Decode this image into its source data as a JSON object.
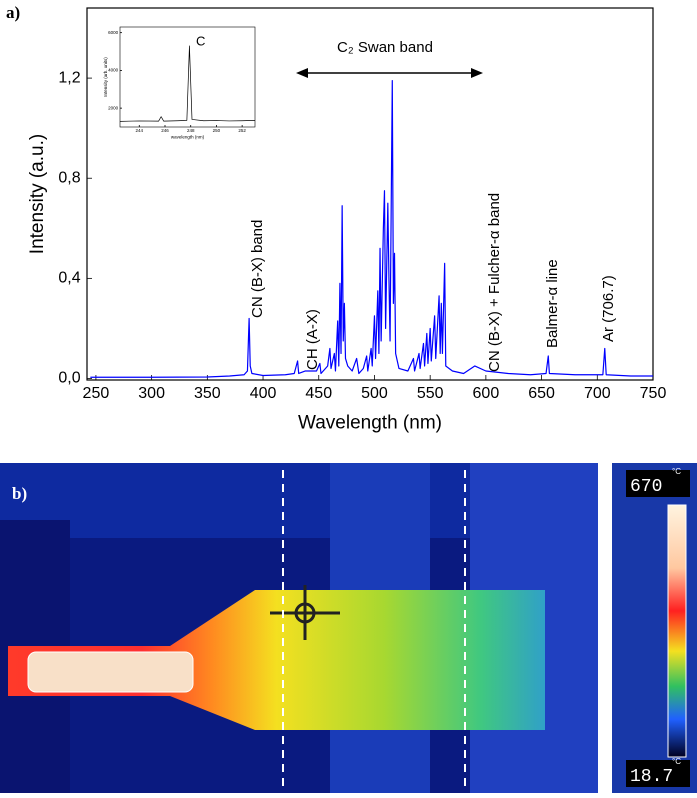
{
  "chart_data": [
    {
      "type": "line",
      "panel_label": "a)",
      "x_label": "Wavelength (nm)",
      "y_label": "Intensity (a.u.)",
      "xlim": [
        242,
        750
      ],
      "ylim": [
        -0.006,
        1.48
      ],
      "xticks": [
        250,
        300,
        350,
        400,
        450,
        500,
        550,
        600,
        650,
        700,
        750
      ],
      "yticks": [
        {
          "value": 0,
          "label": "0,0"
        },
        {
          "value": 0.4,
          "label": "0,4"
        },
        {
          "value": 0.8,
          "label": "0,8"
        },
        {
          "value": 1.2,
          "label": "1,2"
        }
      ],
      "color": "#0000ff",
      "x": [
        245,
        300,
        350,
        370,
        383,
        386,
        387.5,
        388.5,
        390,
        400,
        420,
        428,
        431,
        432,
        438,
        448,
        451,
        452,
        458,
        460,
        461,
        464,
        465,
        467,
        468,
        469,
        470,
        471,
        472,
        473,
        474,
        476,
        480,
        484,
        486,
        490,
        493,
        494,
        497,
        498,
        500,
        501,
        503,
        504,
        505,
        506,
        508,
        509,
        510,
        512,
        513,
        514,
        516,
        517,
        518,
        519,
        522,
        530,
        535,
        536,
        540,
        541,
        544,
        545,
        547,
        548,
        550,
        551,
        554,
        555,
        558,
        559,
        560,
        561,
        563,
        564,
        570,
        580,
        590,
        600,
        620,
        640,
        654,
        656,
        657,
        680,
        705,
        706.7,
        708,
        730,
        750
      ],
      "values": [
        0.005,
        0.005,
        0.006,
        0.01,
        0.015,
        0.03,
        0.24,
        0.05,
        0.02,
        0.012,
        0.015,
        0.02,
        0.07,
        0.02,
        0.03,
        0.03,
        0.06,
        0.02,
        0.05,
        0.12,
        0.04,
        0.1,
        0.03,
        0.23,
        0.05,
        0.38,
        0.1,
        0.69,
        0.15,
        0.3,
        0.08,
        0.05,
        0.03,
        0.08,
        0.02,
        0.04,
        0.09,
        0.03,
        0.12,
        0.05,
        0.25,
        0.08,
        0.35,
        0.1,
        0.52,
        0.15,
        0.6,
        0.75,
        0.2,
        0.7,
        0.4,
        0.15,
        1.19,
        0.3,
        0.5,
        0.1,
        0.04,
        0.03,
        0.08,
        0.03,
        0.1,
        0.04,
        0.14,
        0.05,
        0.18,
        0.06,
        0.2,
        0.07,
        0.25,
        0.08,
        0.33,
        0.1,
        0.3,
        0.1,
        0.46,
        0.05,
        0.03,
        0.02,
        0.05,
        0.03,
        0.02,
        0.015,
        0.02,
        0.09,
        0.02,
        0.015,
        0.015,
        0.12,
        0.015,
        0.01,
        0.01
      ],
      "annotations": [
        "CN (B-X) band",
        "CH (A-X)",
        "C₂ Swan band",
        "CN (B-X) + Fulcher-α band",
        "Balmer-α line",
        "Ar (706.7)"
      ]
    },
    {
      "type": "line",
      "x_label": "wavelength (nm)",
      "y_label": "Intensity (arb. units)",
      "annotation": "C",
      "xlim": [
        242.5,
        253
      ],
      "ylim": [
        1000,
        6300
      ],
      "xticks": [
        244,
        246,
        248,
        250,
        252
      ],
      "yticks": [
        2000,
        4000,
        6000
      ],
      "color": "#000000",
      "x": [
        242.5,
        244,
        245.5,
        245.7,
        245.9,
        247,
        247.7,
        247.9,
        248.1,
        249,
        250,
        251,
        252,
        253
      ],
      "values": [
        1300,
        1320,
        1310,
        1550,
        1310,
        1330,
        1350,
        5300,
        1400,
        1330,
        1340,
        1320,
        1330,
        1350
      ]
    }
  ],
  "thermal_image": {
    "panel_label": "b)",
    "scale_max": "670",
    "scale_min": "18.7",
    "unit": "°C"
  }
}
